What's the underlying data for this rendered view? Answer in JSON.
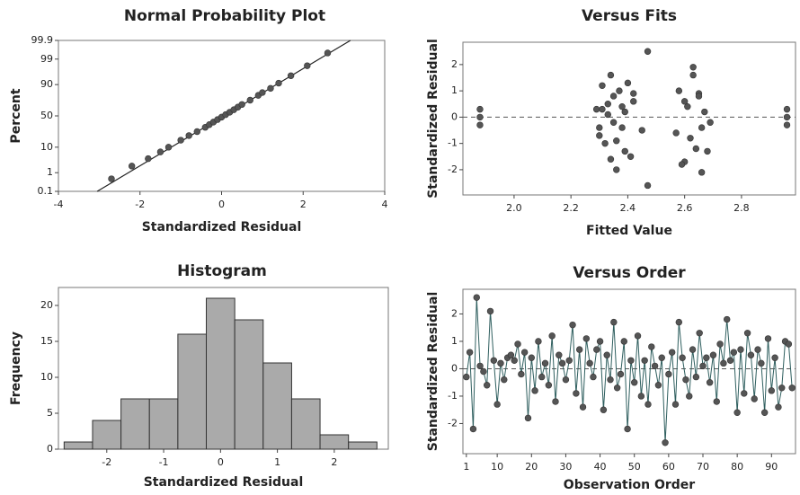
{
  "chart_data": [
    {
      "type": "probability",
      "title": "Normal Probability Plot",
      "x_label": "Standardized Residual",
      "y_label": "Percent",
      "xlim": [
        -4,
        4
      ],
      "xticks": [
        -4,
        -2,
        0,
        2,
        4
      ],
      "ylim": [
        0.1,
        99.9
      ],
      "yticks": [
        0.1,
        1,
        10,
        50,
        90,
        99,
        99.9
      ],
      "color": "#555555",
      "line_color": "#222222",
      "x": [
        -2.7,
        -2.2,
        -1.8,
        -1.5,
        -1.3,
        -1.0,
        -0.8,
        -0.6,
        -0.4,
        -0.3,
        -0.2,
        -0.1,
        0,
        0.1,
        0.2,
        0.3,
        0.4,
        0.5,
        0.7,
        0.9,
        1.0,
        1.2,
        1.4,
        1.7,
        2.1,
        2.6
      ],
      "y": [
        0.5,
        2,
        4,
        7,
        10,
        16,
        21,
        26,
        32,
        36,
        40,
        44,
        48,
        52,
        56,
        60,
        64,
        68,
        74,
        80,
        83,
        87,
        91,
        95,
        98,
        99.5
      ],
      "fit_line": {
        "x": [
          -3.05,
          3.16
        ],
        "y": [
          0.1,
          99.9
        ]
      }
    },
    {
      "type": "scatter",
      "title": "Versus Fits",
      "x_label": "Fitted Value",
      "y_label": "Standardized Residual",
      "xlim": [
        1.82,
        2.99
      ],
      "xticks": [
        {
          "value": 2,
          "label": "2.0"
        },
        2.2,
        2.4,
        2.6,
        2.8
      ],
      "ylim": [
        -2.96,
        2.85
      ],
      "yticks": [
        -2,
        -1,
        0,
        1,
        2
      ],
      "color": "#555555",
      "reference_line": 0,
      "x": [
        1.88,
        1.88,
        1.88,
        2.29,
        2.3,
        2.31,
        2.32,
        2.33,
        2.34,
        2.35,
        2.35,
        2.36,
        2.37,
        2.38,
        2.39,
        2.4,
        2.41,
        2.42,
        2.3,
        2.33,
        2.36,
        2.39,
        2.42,
        2.45,
        2.47,
        2.47,
        2.34,
        2.38,
        2.31,
        2.57,
        2.58,
        2.6,
        2.61,
        2.62,
        2.63,
        2.64,
        2.65,
        2.66,
        2.67,
        2.68,
        2.6,
        2.63,
        2.66,
        2.69,
        2.59,
        2.65,
        2.96,
        2.96,
        2.96
      ],
      "y": [
        0.3,
        0,
        -0.3,
        0.3,
        -0.7,
        1.2,
        -1.0,
        0.5,
        1.6,
        -0.2,
        0.8,
        -2.0,
        1.0,
        -0.4,
        0.2,
        1.3,
        -1.5,
        0.6,
        -0.4,
        0.1,
        -0.9,
        -1.3,
        0.9,
        -0.5,
        2.5,
        -2.6,
        -1.6,
        0.4,
        0.3,
        -0.6,
        1.0,
        -1.7,
        0.4,
        -0.8,
        1.6,
        -1.2,
        0.9,
        -2.1,
        0.2,
        -1.3,
        0.6,
        1.9,
        -0.4,
        -0.2,
        -1.8,
        0.8,
        0.3,
        0,
        -0.3
      ]
    },
    {
      "type": "histogram",
      "title": "Histogram",
      "x_label": "Standardized Residual",
      "y_label": "Frequency",
      "xlim": [
        -2.85,
        2.95
      ],
      "xticks": [
        -2,
        -1,
        0,
        1,
        2
      ],
      "ylim": [
        0,
        22.5
      ],
      "yticks": [
        0,
        5,
        10,
        15,
        20
      ],
      "color": "#aaaaaa",
      "bins": [
        -2.75,
        -2.25,
        -1.75,
        -1.25,
        -0.75,
        -0.25,
        0.25,
        0.75,
        1.25,
        1.75,
        2.25,
        2.75
      ],
      "values": [
        1,
        4,
        7,
        7,
        16,
        21,
        18,
        12,
        7,
        2,
        1
      ]
    },
    {
      "type": "line",
      "title": "Versus Order",
      "x_label": "Observation Order",
      "y_label": "Standardized Residual",
      "xlim": [
        0,
        97
      ],
      "xticks": [
        1,
        10,
        20,
        30,
        40,
        50,
        60,
        70,
        80,
        90
      ],
      "ylim": [
        -3.1,
        2.9
      ],
      "yticks": [
        -2,
        -1,
        0,
        1,
        2
      ],
      "color": "#555555",
      "line_color": "#2f5f5f",
      "reference_line": 0,
      "x": [
        1,
        2,
        3,
        4,
        5,
        6,
        7,
        8,
        9,
        10,
        11,
        12,
        13,
        14,
        15,
        16,
        17,
        18,
        19,
        20,
        21,
        22,
        23,
        24,
        25,
        26,
        27,
        28,
        29,
        30,
        31,
        32,
        33,
        34,
        35,
        36,
        37,
        38,
        39,
        40,
        41,
        42,
        43,
        44,
        45,
        46,
        47,
        48,
        49,
        50,
        51,
        52,
        53,
        54,
        55,
        56,
        57,
        58,
        59,
        60,
        61,
        62,
        63,
        64,
        65,
        66,
        67,
        68,
        69,
        70,
        71,
        72,
        73,
        74,
        75,
        76,
        77,
        78,
        79,
        80,
        81,
        82,
        83,
        84,
        85,
        86,
        87,
        88,
        89,
        90,
        91,
        92,
        93,
        94,
        95,
        96
      ],
      "y": [
        -0.3,
        0.6,
        -2.2,
        2.6,
        0.1,
        -0.1,
        -0.6,
        2.1,
        0.3,
        -1.3,
        0.2,
        -0.4,
        0.4,
        0.5,
        0.3,
        0.9,
        -0.2,
        0.6,
        -1.8,
        0.4,
        -0.8,
        1.0,
        -0.3,
        0.2,
        -0.6,
        1.2,
        -1.2,
        0.5,
        0.2,
        -0.4,
        0.3,
        1.6,
        -0.9,
        0.7,
        -1.4,
        1.1,
        0.2,
        -0.3,
        0.7,
        1.0,
        -1.5,
        0.5,
        -0.4,
        1.7,
        -0.7,
        -0.2,
        1.0,
        -2.2,
        0.3,
        -0.5,
        1.2,
        -1.0,
        0.3,
        -1.3,
        0.8,
        0.1,
        -0.6,
        0.4,
        -2.7,
        -0.2,
        0.6,
        -1.3,
        1.7,
        0.4,
        -0.4,
        -1.0,
        0.7,
        -0.3,
        1.3,
        0.1,
        0.4,
        -0.5,
        0.5,
        -1.2,
        0.9,
        0.2,
        1.8,
        0.3,
        0.6,
        -1.6,
        0.7,
        -0.9,
        1.3,
        0.5,
        -1.1,
        0.7,
        0.2,
        -1.6,
        1.1,
        -0.8,
        0.4,
        -1.4,
        -0.7,
        1.0,
        0.9,
        -0.7
      ]
    }
  ]
}
